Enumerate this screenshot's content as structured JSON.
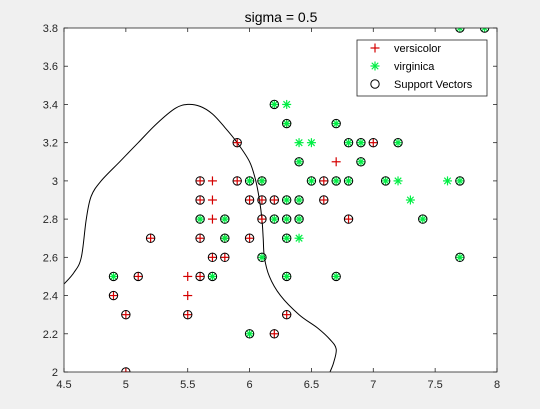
{
  "figure": {
    "background": "#f0f0f0"
  },
  "chart_data": {
    "type": "scatter",
    "title": "sigma = 0.5",
    "xlabel": "",
    "ylabel": "",
    "xlim": [
      4.5,
      8
    ],
    "ylim": [
      2,
      3.8
    ],
    "grid": false,
    "x_ticks": [
      4.5,
      5,
      5.5,
      6,
      6.5,
      7,
      7.5,
      8
    ],
    "x_tick_labels": [
      "4.5",
      "5",
      "5.5",
      "6",
      "6.5",
      "7",
      "7.5",
      "8"
    ],
    "y_ticks": [
      2,
      2.2,
      2.4,
      2.6,
      2.8,
      3,
      3.2,
      3.4,
      3.6,
      3.8
    ],
    "y_tick_labels": [
      "2",
      "2.2",
      "2.4",
      "2.6",
      "2.8",
      "3",
      "3.2",
      "3.4",
      "3.6",
      "3.8"
    ],
    "legend": {
      "position": "top-right",
      "entries": [
        {
          "label": "versicolor",
          "marker": "plus",
          "color": "#d40000"
        },
        {
          "label": "virginica",
          "marker": "asterisk",
          "color": "#00ee44"
        },
        {
          "label": "Support Vectors",
          "marker": "circle",
          "color": "#000000"
        }
      ]
    },
    "series": [
      {
        "name": "versicolor",
        "marker": "plus",
        "color": "#d40000",
        "points": [
          [
            5.0,
            2.0
          ],
          [
            4.9,
            2.4
          ],
          [
            5.0,
            2.3
          ],
          [
            5.1,
            2.5
          ],
          [
            5.2,
            2.7
          ],
          [
            5.5,
            2.3
          ],
          [
            5.5,
            2.4
          ],
          [
            5.5,
            2.5
          ],
          [
            5.6,
            2.5
          ],
          [
            5.6,
            2.7
          ],
          [
            5.6,
            2.9
          ],
          [
            5.6,
            3.0
          ],
          [
            5.7,
            2.6
          ],
          [
            5.7,
            2.8
          ],
          [
            5.7,
            2.9
          ],
          [
            5.7,
            3.0
          ],
          [
            5.8,
            2.6
          ],
          [
            5.8,
            2.7
          ],
          [
            5.9,
            3.0
          ],
          [
            5.9,
            3.2
          ],
          [
            6.0,
            2.7
          ],
          [
            6.0,
            2.9
          ],
          [
            6.1,
            2.8
          ],
          [
            6.1,
            2.9
          ],
          [
            6.1,
            3.0
          ],
          [
            6.2,
            2.2
          ],
          [
            6.2,
            2.9
          ],
          [
            6.3,
            2.3
          ],
          [
            6.3,
            3.3
          ],
          [
            6.6,
            2.9
          ],
          [
            6.6,
            3.0
          ],
          [
            6.8,
            2.8
          ],
          [
            7.0,
            3.2
          ],
          [
            6.7,
            3.1
          ]
        ]
      },
      {
        "name": "virginica",
        "marker": "asterisk",
        "color": "#00ee44",
        "points": [
          [
            4.9,
            2.5
          ],
          [
            5.6,
            2.8
          ],
          [
            5.7,
            2.5
          ],
          [
            5.8,
            2.7
          ],
          [
            5.8,
            2.8
          ],
          [
            6.0,
            2.2
          ],
          [
            6.0,
            3.0
          ],
          [
            6.1,
            2.6
          ],
          [
            6.1,
            3.0
          ],
          [
            6.2,
            2.8
          ],
          [
            6.2,
            3.4
          ],
          [
            6.3,
            2.5
          ],
          [
            6.3,
            2.7
          ],
          [
            6.3,
            2.8
          ],
          [
            6.3,
            2.9
          ],
          [
            6.3,
            3.3
          ],
          [
            6.3,
            3.4
          ],
          [
            6.4,
            2.7
          ],
          [
            6.4,
            2.8
          ],
          [
            6.4,
            2.9
          ],
          [
            6.4,
            3.1
          ],
          [
            6.4,
            3.2
          ],
          [
            6.5,
            3.0
          ],
          [
            6.5,
            3.2
          ],
          [
            6.7,
            2.5
          ],
          [
            6.7,
            3.0
          ],
          [
            6.7,
            3.3
          ],
          [
            6.8,
            3.0
          ],
          [
            6.8,
            3.2
          ],
          [
            6.9,
            3.1
          ],
          [
            6.9,
            3.2
          ],
          [
            7.1,
            3.0
          ],
          [
            7.2,
            3.0
          ],
          [
            7.2,
            3.2
          ],
          [
            7.3,
            2.9
          ],
          [
            7.4,
            2.8
          ],
          [
            7.6,
            3.0
          ],
          [
            7.7,
            2.6
          ],
          [
            7.7,
            3.0
          ],
          [
            7.7,
            3.8
          ],
          [
            7.9,
            3.8
          ]
        ]
      },
      {
        "name": "Support Vectors",
        "marker": "circle",
        "color": "#000000",
        "points": [
          [
            5.0,
            2.0
          ],
          [
            4.9,
            2.4
          ],
          [
            5.0,
            2.3
          ],
          [
            5.1,
            2.5
          ],
          [
            5.2,
            2.7
          ],
          [
            5.5,
            2.3
          ],
          [
            5.6,
            2.5
          ],
          [
            5.6,
            2.7
          ],
          [
            5.6,
            2.9
          ],
          [
            5.6,
            3.0
          ],
          [
            5.7,
            2.6
          ],
          [
            5.8,
            2.6
          ],
          [
            5.8,
            2.7
          ],
          [
            5.9,
            3.0
          ],
          [
            5.9,
            3.2
          ],
          [
            6.0,
            2.7
          ],
          [
            6.0,
            2.9
          ],
          [
            6.1,
            2.8
          ],
          [
            6.1,
            2.9
          ],
          [
            6.2,
            2.2
          ],
          [
            6.2,
            2.9
          ],
          [
            6.3,
            2.3
          ],
          [
            6.6,
            2.9
          ],
          [
            6.6,
            3.0
          ],
          [
            6.8,
            2.8
          ],
          [
            7.0,
            3.2
          ],
          [
            4.9,
            2.5
          ],
          [
            5.6,
            2.8
          ],
          [
            5.7,
            2.5
          ],
          [
            5.8,
            2.8
          ],
          [
            6.0,
            2.2
          ],
          [
            6.0,
            3.0
          ],
          [
            6.1,
            2.6
          ],
          [
            6.1,
            3.0
          ],
          [
            6.2,
            2.8
          ],
          [
            6.2,
            3.4
          ],
          [
            6.3,
            2.5
          ],
          [
            6.3,
            2.8
          ],
          [
            6.3,
            2.9
          ],
          [
            6.3,
            3.3
          ],
          [
            6.3,
            2.7
          ],
          [
            6.4,
            2.8
          ],
          [
            6.4,
            2.9
          ],
          [
            6.4,
            3.1
          ],
          [
            6.5,
            3.0
          ],
          [
            6.7,
            2.5
          ],
          [
            6.7,
            3.0
          ],
          [
            6.7,
            3.3
          ],
          [
            6.8,
            3.0
          ],
          [
            6.8,
            3.2
          ],
          [
            6.9,
            3.1
          ],
          [
            6.9,
            3.2
          ],
          [
            7.1,
            3.0
          ],
          [
            7.2,
            3.2
          ],
          [
            7.4,
            2.8
          ],
          [
            7.7,
            2.6
          ],
          [
            7.7,
            3.0
          ],
          [
            7.7,
            3.8
          ],
          [
            7.9,
            3.8
          ]
        ]
      }
    ],
    "decision_boundary": [
      [
        4.5,
        2.46
      ],
      [
        4.58,
        2.52
      ],
      [
        4.64,
        2.6
      ],
      [
        4.68,
        2.8
      ],
      [
        4.72,
        2.92
      ],
      [
        4.8,
        3.0
      ],
      [
        4.95,
        3.1
      ],
      [
        5.1,
        3.2
      ],
      [
        5.25,
        3.3
      ],
      [
        5.4,
        3.38
      ],
      [
        5.5,
        3.4
      ],
      [
        5.6,
        3.39
      ],
      [
        5.7,
        3.35
      ],
      [
        5.8,
        3.28
      ],
      [
        5.9,
        3.2
      ],
      [
        6.0,
        3.1
      ],
      [
        6.05,
        3.0
      ],
      [
        6.08,
        2.9
      ],
      [
        6.1,
        2.8
      ],
      [
        6.11,
        2.7
      ],
      [
        6.12,
        2.6
      ],
      [
        6.16,
        2.5
      ],
      [
        6.25,
        2.4
      ],
      [
        6.4,
        2.3
      ],
      [
        6.55,
        2.23
      ],
      [
        6.65,
        2.17
      ],
      [
        6.7,
        2.12
      ],
      [
        6.68,
        2.05
      ],
      [
        6.65,
        2.0
      ]
    ]
  }
}
